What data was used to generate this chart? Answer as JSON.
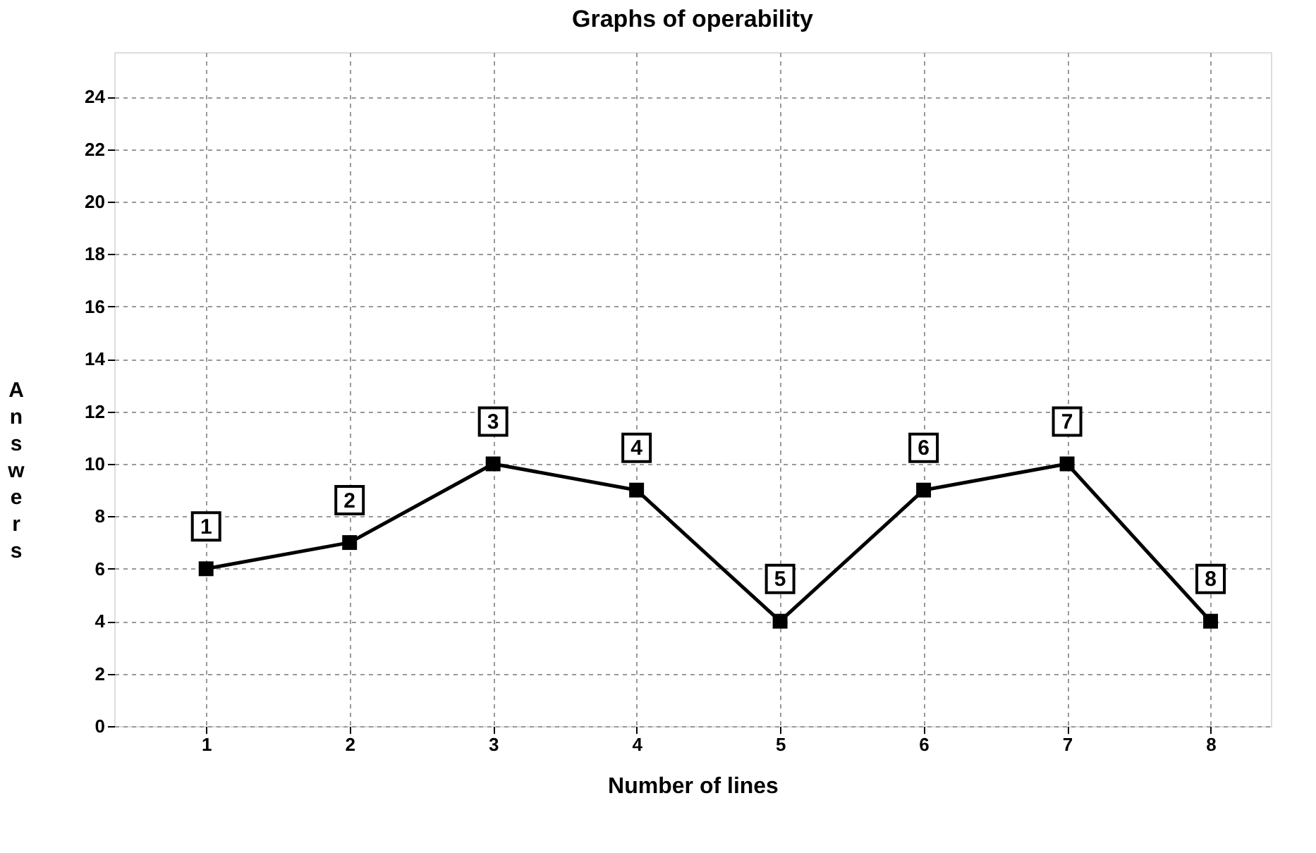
{
  "chart_data": {
    "type": "line",
    "title": "Graphs of operability",
    "xlabel": "Number of lines",
    "ylabel": "Answers",
    "x": [
      1,
      2,
      3,
      4,
      5,
      6,
      7,
      8
    ],
    "series": [
      {
        "color": "#000000",
        "values": [
          6,
          7,
          10,
          9,
          4,
          9,
          10,
          4
        ]
      }
    ],
    "xlim": [
      0.36,
      8.42
    ],
    "xticks": [
      1,
      2,
      3,
      4,
      5,
      6,
      7,
      8
    ],
    "ylim": [
      0,
      25.7
    ],
    "yticks": [
      0,
      2,
      4,
      6,
      8,
      10,
      12,
      14,
      16,
      18,
      20,
      22,
      24
    ],
    "grid": true,
    "marker": "square",
    "line_style": "solid",
    "annotations": [
      {
        "text": "1",
        "x": 1,
        "y": 6
      },
      {
        "text": "2",
        "x": 2,
        "y": 7
      },
      {
        "text": "3",
        "x": 3,
        "y": 10
      },
      {
        "text": "4",
        "x": 4,
        "y": 9
      },
      {
        "text": "5",
        "x": 5,
        "y": 4
      },
      {
        "text": "6",
        "x": 6,
        "y": 9
      },
      {
        "text": "7",
        "x": 7,
        "y": 10
      },
      {
        "text": "8",
        "x": 8,
        "y": 4
      }
    ]
  }
}
